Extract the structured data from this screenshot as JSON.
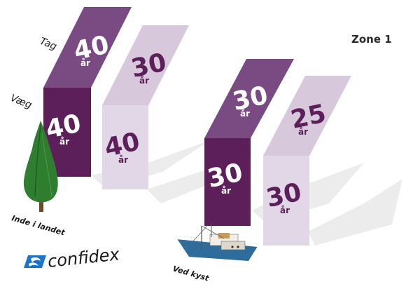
{
  "zone_title": "Zone 1",
  "labels": {
    "roof": "Tag",
    "wall": "Væg",
    "inland": "Inde i landet",
    "coast": "Ved kyst"
  },
  "unit": "år",
  "brand": "confidex",
  "colors": {
    "dark_purple": "#5c1f5a",
    "mid_purple": "#7a4b82",
    "light_purple": "#d7c8dc",
    "lighter_purple": "#e2d7e6",
    "shadow": "#e9e9e9",
    "tree": "#2f7d2f",
    "logo_blue": "#1c74c8"
  },
  "panels": [
    {
      "location": "Inde i landet",
      "product": "first",
      "roof_years": "40",
      "wall_years": "40"
    },
    {
      "location": "Inde i landet",
      "product": "second",
      "roof_years": "30",
      "wall_years": "40"
    },
    {
      "location": "Ved kyst",
      "product": "first",
      "roof_years": "30",
      "wall_years": "30"
    },
    {
      "location": "Ved kyst",
      "product": "second",
      "roof_years": "25",
      "wall_years": "30"
    }
  ]
}
